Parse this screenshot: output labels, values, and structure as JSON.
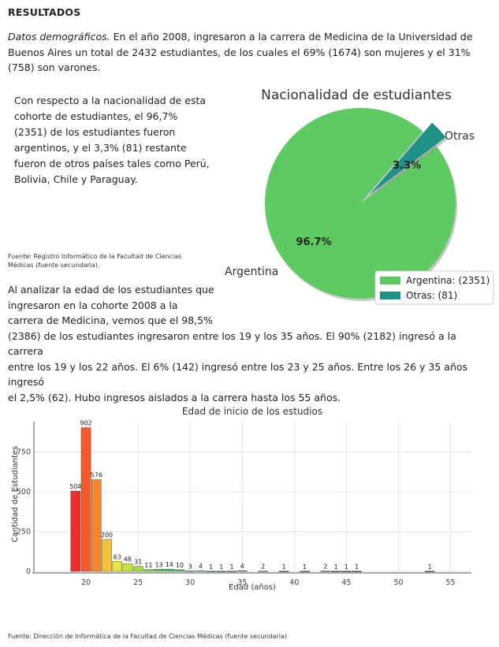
{
  "heading": "RESULTADOS",
  "p1_italic": "Datos demográficos.",
  "p1_rest": " En el año 2008, ingresaron a la carrera de Medicina de la Universidad de Buenos Aires un total de 2432 estudiantes, de los cuales el 69% (1674) son mujeres y el 31% (758) son varones.",
  "p2": "Con respecto a la nacionalidad de esta cohorte de estudiantes, el 96,7% (2351) de los estudiantes fueron argentinos, y el 3,3% (81) restante fueron de otros países tales como Perú, Bolivia, Chile y Paraguay.",
  "source1": "Fuente: Registro Informático de la Facultad de Ciencias Médicas (fuente secundaria).",
  "p3_a": "Al analizar la edad de los estudiantes que",
  "p3_b": "ingresaron en la cohorte 2008 a la",
  "p3_c": "carrera de Medicina, vemos que el 98,5%",
  "p3_d": "(2386) de los estudiantes ingresaron entre los 19 y los 35 años. El 90% (2182) ingresó a la carrera",
  "p3_e": "entre los 19 y los 22 años. El 6% (142) ingresó entre los 23 y 25 años. Entre los 26 y 35 años ingresó",
  "p3_f": "el 2,5% (62). Hubo ingresos aislados a la carrera hasta los 55 años.",
  "source2": "Fuente: Dirección de Informática de la Facultad de Ciencias Médicas (fuente secundaria)",
  "chart_data": [
    {
      "type": "pie",
      "title": "Nacionalidad de estudiantes",
      "labels": [
        "Argentina",
        "Otras"
      ],
      "values": [
        2351,
        81
      ],
      "percent_labels": [
        "96.7%",
        "3.3%"
      ],
      "legend": [
        "Argentina: (2351)",
        "Otras: (81)"
      ],
      "colors": [
        "#5ecb62",
        "#1f9187"
      ],
      "legend_placement": "bottom-right",
      "explode": [
        0,
        1
      ]
    },
    {
      "type": "bar",
      "title": "Edad de inicio de los estudios",
      "xlabel": "Edad (años)",
      "ylabel": "Cantidad de Estudiantes",
      "xlim": [
        15,
        57
      ],
      "ylim": [
        0,
        940
      ],
      "xticks": [
        20,
        25,
        30,
        35,
        40,
        45,
        50,
        55
      ],
      "yticks": [
        0,
        250,
        500,
        750
      ],
      "x": [
        19,
        20,
        21,
        22,
        23,
        24,
        25,
        26,
        27,
        28,
        29,
        30,
        31,
        32,
        33,
        34,
        35,
        37,
        39,
        41,
        43,
        44,
        45,
        46,
        53
      ],
      "values": [
        504,
        902,
        576,
        200,
        63,
        48,
        31,
        11,
        13,
        14,
        10,
        3,
        4,
        1,
        1,
        1,
        4,
        2,
        1,
        1,
        2,
        1,
        1,
        1,
        1
      ],
      "colors": [
        "#ee2e2e",
        "#f35a2e",
        "#f5872f",
        "#f5c33b",
        "#e9e53e",
        "#c8e43c",
        "#a4dc3a",
        "#7ed33d",
        "#5ecb4a",
        "#49c35c",
        "#3eb872",
        "#36a884",
        "#319893",
        "#2e8a99",
        "#2e7c98",
        "#306e96",
        "#336292",
        "#36568c",
        "#394b85",
        "#3c427e",
        "#3e3a77",
        "#3f3370",
        "#3f2d68",
        "#3e2760",
        "#3a1f55"
      ],
      "grid": true
    }
  ]
}
